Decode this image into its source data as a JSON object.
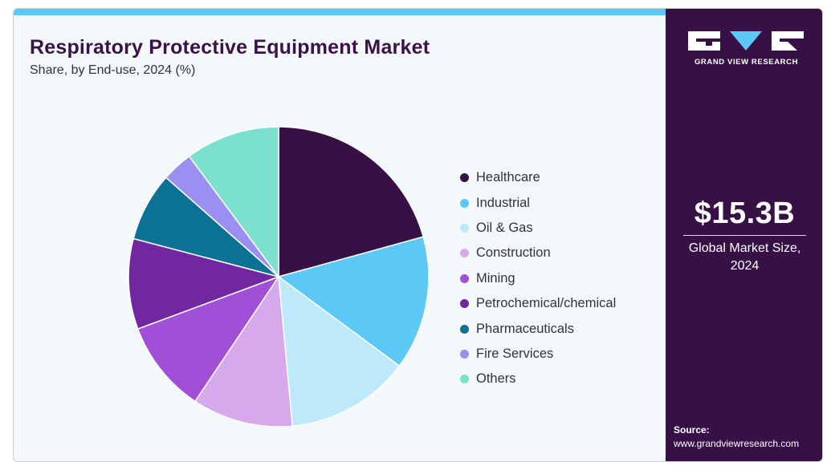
{
  "header": {
    "title": "Respiratory Protective Equipment Market",
    "subtitle": "Share, by End-use, 2024 (%)"
  },
  "brand": {
    "name": "GRAND VIEW RESEARCH",
    "logo_icon": "gvr-logo-icon",
    "colors": {
      "panel": "#371146",
      "accent": "#5bc8f5",
      "background": "#f3f8fb"
    }
  },
  "summary": {
    "market_value": "$15.3B",
    "market_caption": "Global Market Size, 2024"
  },
  "source": {
    "label": "Source:",
    "url": "www.grandviewresearch.com"
  },
  "chart_data": {
    "type": "pie",
    "title": "Respiratory Protective Equipment Market",
    "subtitle": "Share, by End-use, 2024 (%)",
    "start_angle_deg": 0,
    "direction": "clockwise",
    "legend_position": "right",
    "categories": [
      "Healthcare",
      "Industrial",
      "Oil & Gas",
      "Construction",
      "Mining",
      "Petrochemical/chemical",
      "Pharmaceuticals",
      "Fire Services",
      "Others"
    ],
    "values": [
      20.4,
      14.2,
      13.2,
      10.7,
      9.8,
      9.6,
      7.3,
      3.3,
      10.0
    ],
    "colors": [
      "#371146",
      "#5bc8f5",
      "#bde9fa",
      "#d5a9ec",
      "#a24fd8",
      "#7027a0",
      "#0b7296",
      "#9b8ff2",
      "#7be0cc"
    ]
  }
}
